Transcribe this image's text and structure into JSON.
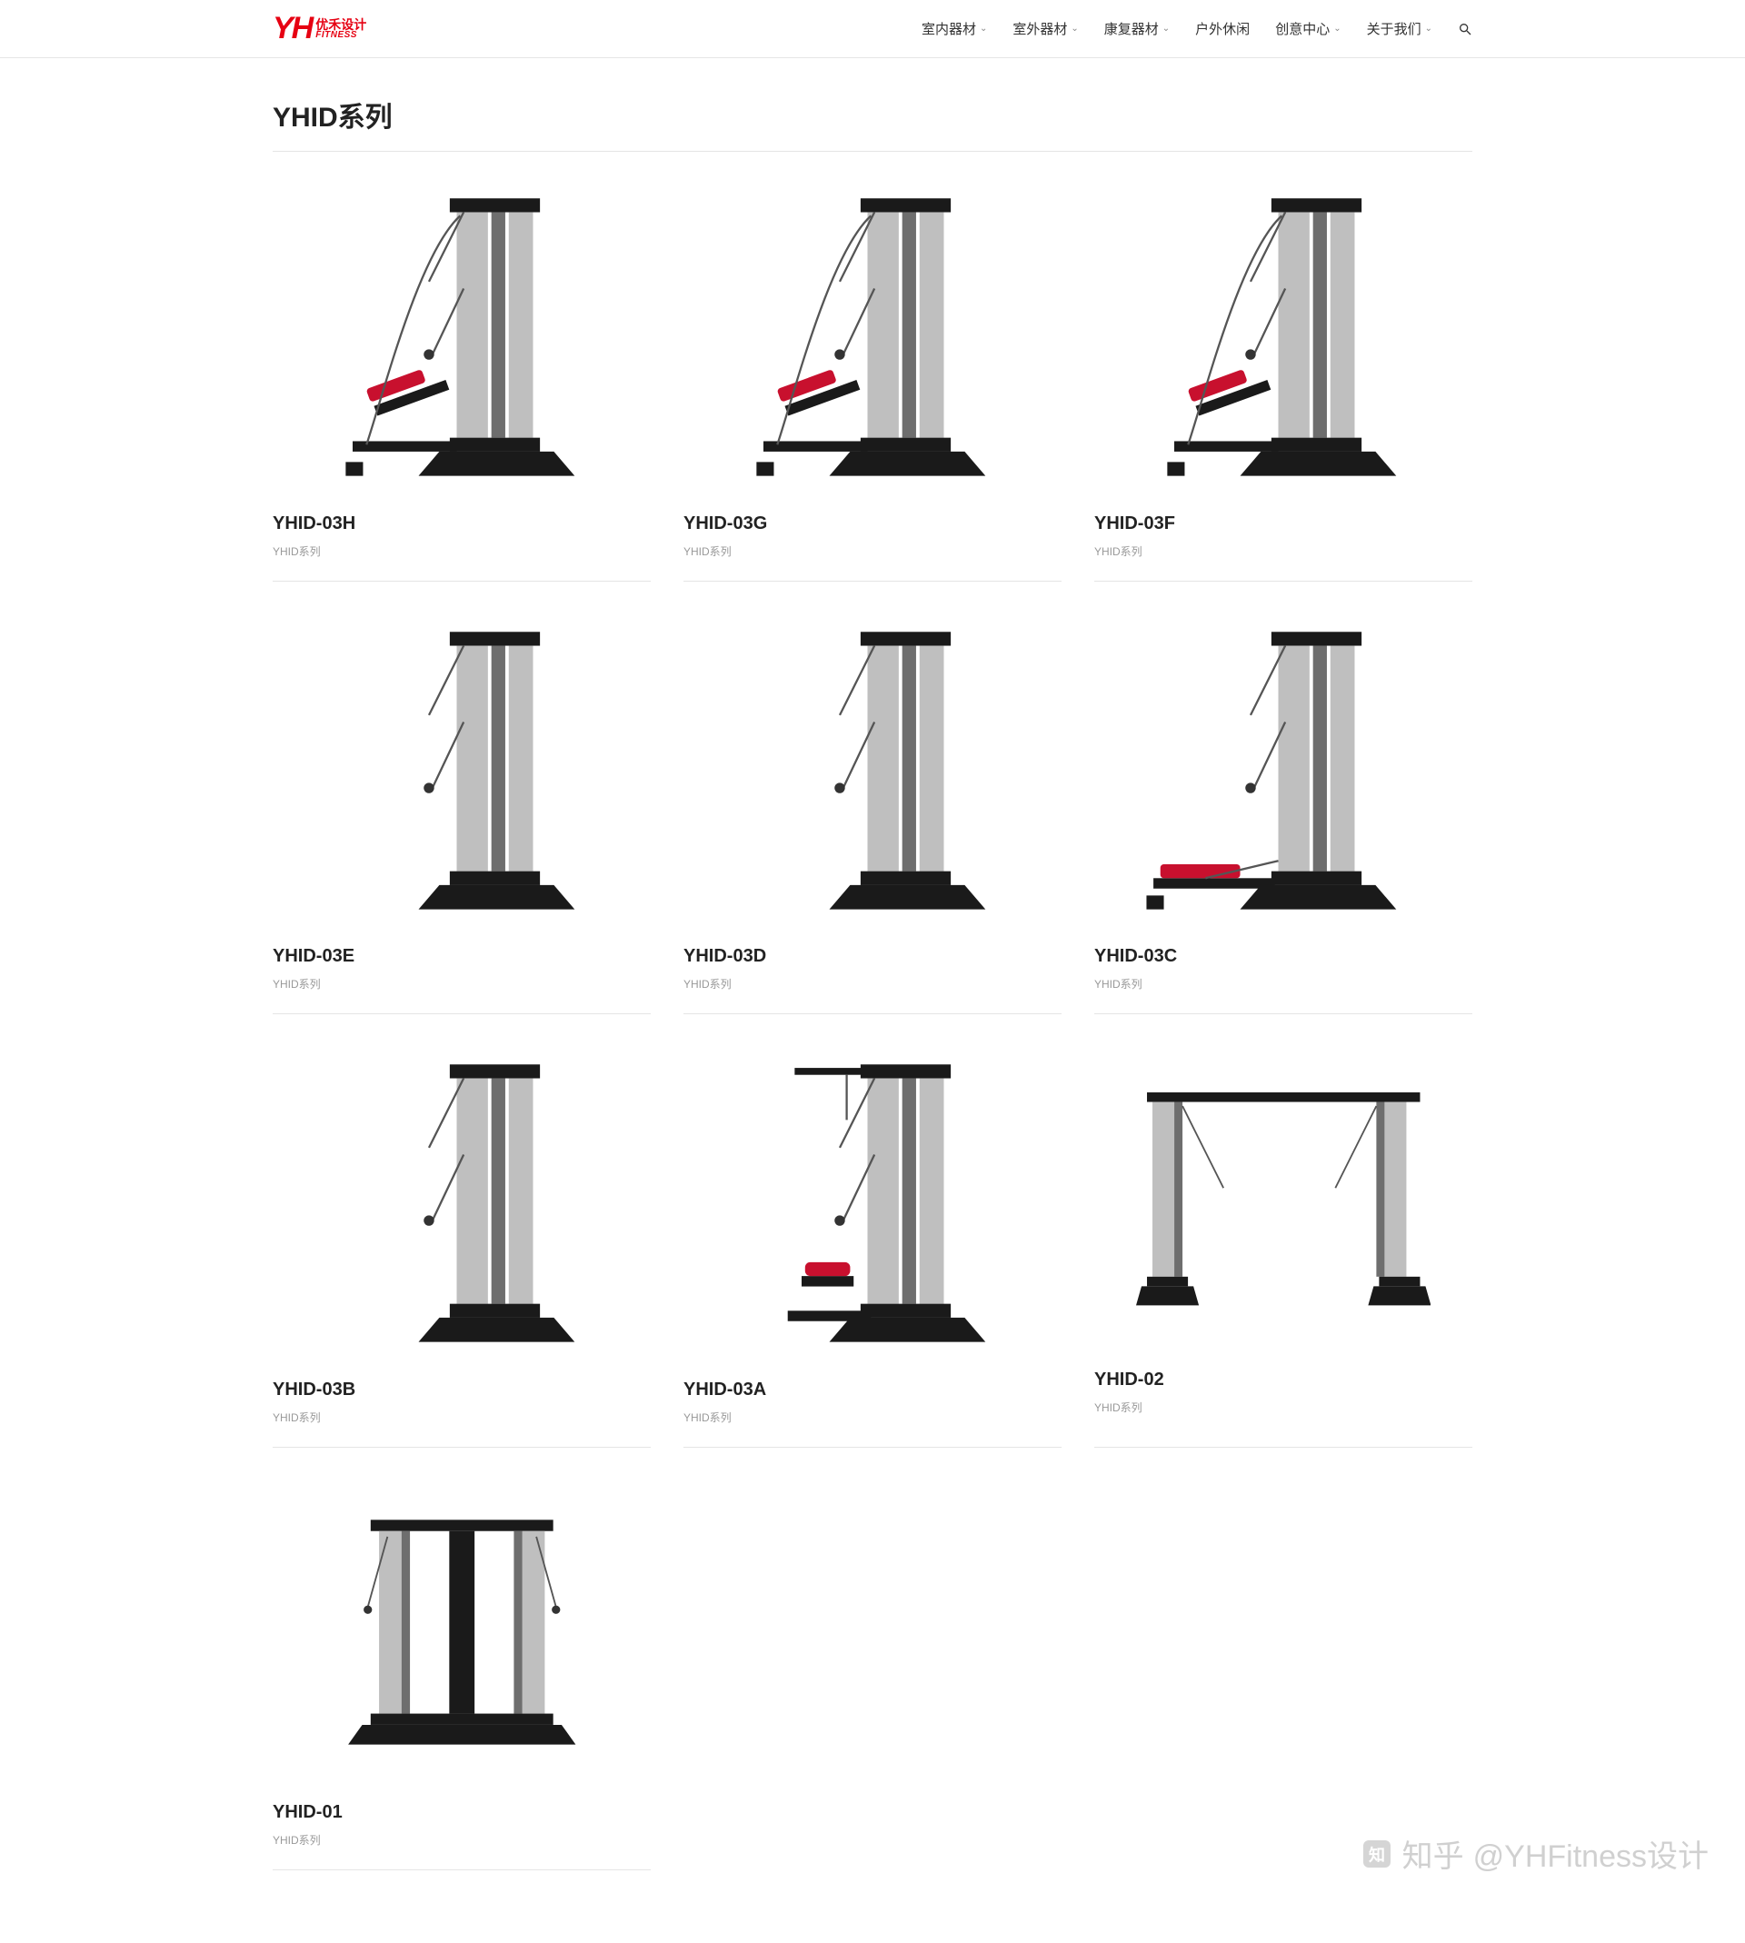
{
  "brand": {
    "mark": "YH",
    "cn": "优禾设计",
    "en": "FITNESS"
  },
  "nav": {
    "items": [
      {
        "label": "室内器材",
        "dropdown": true
      },
      {
        "label": "室外器材",
        "dropdown": true
      },
      {
        "label": "康复器材",
        "dropdown": true
      },
      {
        "label": "户外休闲",
        "dropdown": false
      },
      {
        "label": "创意中心",
        "dropdown": true
      },
      {
        "label": "关于我们",
        "dropdown": true
      }
    ]
  },
  "page": {
    "title": "YHID系列"
  },
  "category_label": "YHID系列",
  "colors": {
    "accent": "#e60012",
    "text": "#333333",
    "muted": "#999999",
    "border": "#e5e5e5",
    "machine_frame": "#1a1a1a",
    "machine_column": "#bfbfbf",
    "machine_pad": "#c8102e"
  },
  "products": [
    {
      "title": "YHID-03H",
      "category": "YHID系列",
      "variant": "bench"
    },
    {
      "title": "YHID-03G",
      "category": "YHID系列",
      "variant": "bench"
    },
    {
      "title": "YHID-03F",
      "category": "YHID系列",
      "variant": "bench"
    },
    {
      "title": "YHID-03E",
      "category": "YHID系列",
      "variant": "tower"
    },
    {
      "title": "YHID-03D",
      "category": "YHID系列",
      "variant": "tower"
    },
    {
      "title": "YHID-03C",
      "category": "YHID系列",
      "variant": "row"
    },
    {
      "title": "YHID-03B",
      "category": "YHID系列",
      "variant": "tower"
    },
    {
      "title": "YHID-03A",
      "category": "YHID系列",
      "variant": "lat"
    },
    {
      "title": "YHID-02",
      "category": "YHID系列",
      "variant": "crossover"
    },
    {
      "title": "YHID-01",
      "category": "YHID系列",
      "variant": "dual"
    }
  ],
  "watermark": {
    "handle": "@YHFitness设计",
    "site": "知乎"
  }
}
